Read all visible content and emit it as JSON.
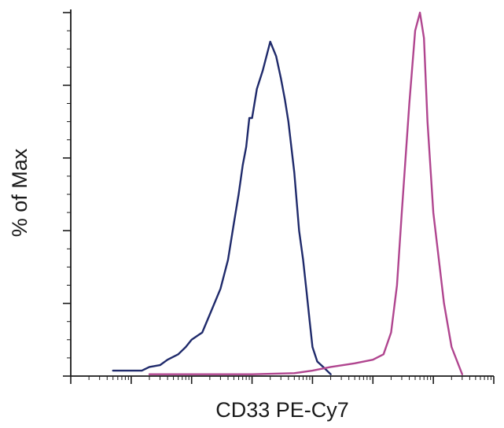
{
  "chart_data": {
    "type": "line",
    "title": "",
    "xlabel": "CD33 PE-Cy7",
    "ylabel": "% of Max",
    "xscale": "log",
    "xlim": [
      0.1,
      1000000
    ],
    "ylim": [
      0,
      100
    ],
    "grid": false,
    "legend": "none",
    "series": [
      {
        "color": "#1f2a6b",
        "x": [
          0.5,
          1.0,
          1.5,
          2.0,
          3.0,
          4.0,
          6.0,
          8.0,
          10,
          15,
          20,
          30,
          40,
          50,
          60,
          70,
          80,
          90,
          100,
          120,
          150,
          200,
          250,
          300,
          350,
          400,
          500,
          600,
          700,
          800,
          900,
          1000,
          1200,
          1500,
          2000
        ],
        "y": [
          1.5,
          1.5,
          1.5,
          2.5,
          3.0,
          4.5,
          6.0,
          8.0,
          10,
          12,
          17,
          24,
          32,
          42,
          50,
          58,
          63,
          71,
          71,
          79,
          84,
          92,
          88,
          82,
          76,
          70,
          56,
          40,
          32,
          23,
          15,
          8,
          4,
          2.5,
          0.5
        ]
      },
      {
        "color": "#b0458f",
        "x": [
          2.0,
          10,
          100,
          500,
          1000,
          2000,
          5000,
          10000,
          15000,
          20000,
          25000,
          30000,
          40000,
          50000,
          60000,
          70000,
          80000,
          100000,
          150000,
          200000,
          300000
        ],
        "y": [
          0.5,
          0.5,
          0.5,
          0.8,
          1.5,
          2.5,
          3.5,
          4.5,
          6,
          12,
          25,
          45,
          75,
          95,
          100,
          93,
          70,
          45,
          20,
          8,
          0.5
        ]
      }
    ]
  }
}
